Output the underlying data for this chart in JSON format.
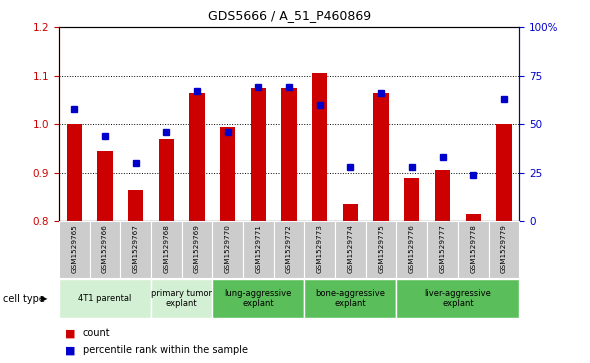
{
  "title": "GDS5666 / A_51_P460869",
  "samples": [
    "GSM1529765",
    "GSM1529766",
    "GSM1529767",
    "GSM1529768",
    "GSM1529769",
    "GSM1529770",
    "GSM1529771",
    "GSM1529772",
    "GSM1529773",
    "GSM1529774",
    "GSM1529775",
    "GSM1529776",
    "GSM1529777",
    "GSM1529778",
    "GSM1529779"
  ],
  "red_values": [
    1.0,
    0.945,
    0.865,
    0.97,
    1.065,
    0.995,
    1.075,
    1.075,
    1.105,
    0.835,
    1.065,
    0.89,
    0.905,
    0.815,
    1.0
  ],
  "blue_values": [
    0.58,
    0.44,
    0.3,
    0.46,
    0.67,
    0.46,
    0.69,
    0.69,
    0.6,
    0.28,
    0.66,
    0.28,
    0.33,
    0.24,
    0.63
  ],
  "ylim_left": [
    0.8,
    1.2
  ],
  "ylim_right": [
    0.0,
    1.0
  ],
  "yticks_left": [
    0.8,
    0.9,
    1.0,
    1.1,
    1.2
  ],
  "yticks_right": [
    0.0,
    0.25,
    0.5,
    0.75,
    1.0
  ],
  "ytick_labels_right": [
    "0",
    "25",
    "50",
    "75",
    "100%"
  ],
  "red_color": "#cc0000",
  "blue_color": "#0000cc",
  "bar_width": 0.5,
  "marker_size": 5,
  "legend_items": [
    "count",
    "percentile rank within the sample"
  ],
  "cell_type_label": "cell type",
  "grid_lines": [
    0.9,
    1.0,
    1.1
  ],
  "background_color": "#ffffff",
  "sample_bg_color": "#cccccc",
  "cell_groups": [
    {
      "label": "4T1 parental",
      "indices": [
        0,
        1,
        2
      ],
      "color": "#d4f0d4"
    },
    {
      "label": "primary tumor\nexplant",
      "indices": [
        3,
        4
      ],
      "color": "#d4f0d4"
    },
    {
      "label": "lung-aggressive\nexplant",
      "indices": [
        5,
        6,
        7
      ],
      "color": "#5abf5a"
    },
    {
      "label": "bone-aggressive\nexplant",
      "indices": [
        8,
        9,
        10
      ],
      "color": "#5abf5a"
    },
    {
      "label": "liver-aggressive\nexplant",
      "indices": [
        11,
        12,
        13,
        14
      ],
      "color": "#5abf5a"
    }
  ]
}
